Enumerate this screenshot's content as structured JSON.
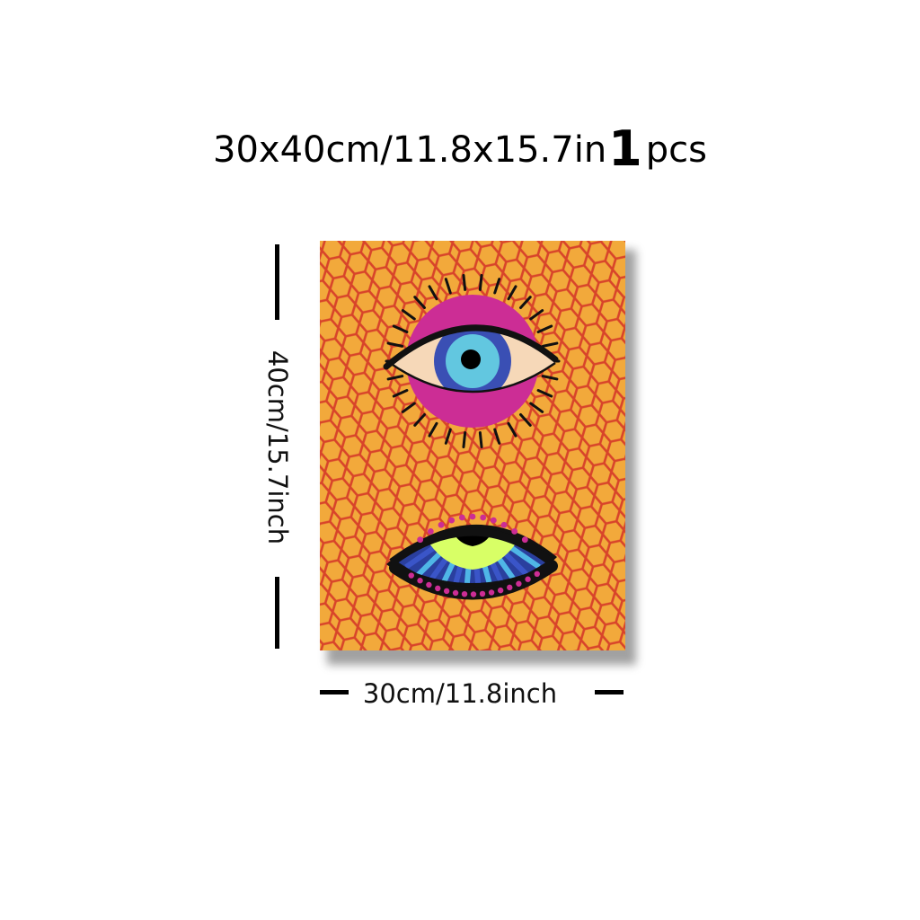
{
  "headline": {
    "size_text": "30x40cm/11.8x15.7in",
    "quantity": "1",
    "unit": "pcs"
  },
  "dimensions": {
    "height_label": "40cm/15.7inch",
    "width_label": "30cm/11.8inch"
  },
  "poster": {
    "background_color": "#f2a93b",
    "net_color": "#d8442a",
    "top_eye": {
      "disc_color": "#cc2d95",
      "sclera_color": "#f6d8b8",
      "iris_outer_color": "#3a4fb4",
      "iris_inner_color": "#62c7e0",
      "pupil_color": "#000000",
      "outline_color": "#111111"
    },
    "bottom_eye": {
      "iris_color": "#d8ff66",
      "ray_color": "#4fb6e6",
      "ray_alt_color": "#3a55c8",
      "dot_color": "#cc2d95",
      "outline_color": "#111111",
      "pupil_color": "#000000"
    }
  }
}
